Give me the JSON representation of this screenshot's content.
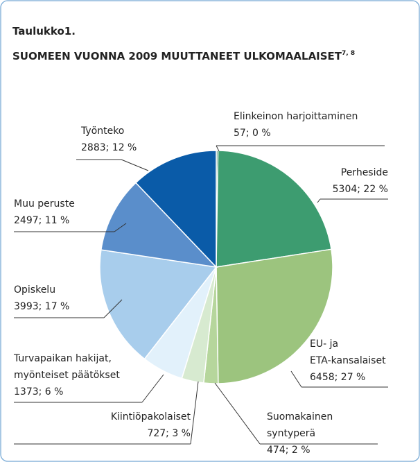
{
  "chart_data": {
    "type": "pie",
    "title": "Taulukko1.",
    "subtitle": "SUOMEEN VUONNA 2009 MUUTTANEET ULKOMAALAISET",
    "subtitle_note": "7, 8",
    "categories": [
      "Elinkeinon harjoittaminen",
      "Perheside",
      "EU- ja\nETA-kansalaiset",
      "Suomakainen\nsyntyperä",
      "Kiintiöpakolaiset",
      "Turvapaikan hakijat,\nmyönteiset päätökset",
      "Opiskelu",
      "Muu peruste",
      "Työnteko"
    ],
    "values": [
      57,
      5304,
      6458,
      474,
      727,
      1373,
      3993,
      2497,
      2883
    ],
    "value_labels": [
      "57; 0 %",
      "5304; 22 %",
      "6458; 27 %",
      "474; 2 %",
      "727; 3 %",
      "1373; 6 %",
      "3993; 17 %",
      "2497; 11 %",
      "2883; 12 %"
    ],
    "colors": [
      "#2b7a57",
      "#3d9c70",
      "#9cc47e",
      "#b6d69c",
      "#d7ead0",
      "#e2f1fb",
      "#a8cdec",
      "#5a8ecb",
      "#0a5ba8"
    ]
  }
}
